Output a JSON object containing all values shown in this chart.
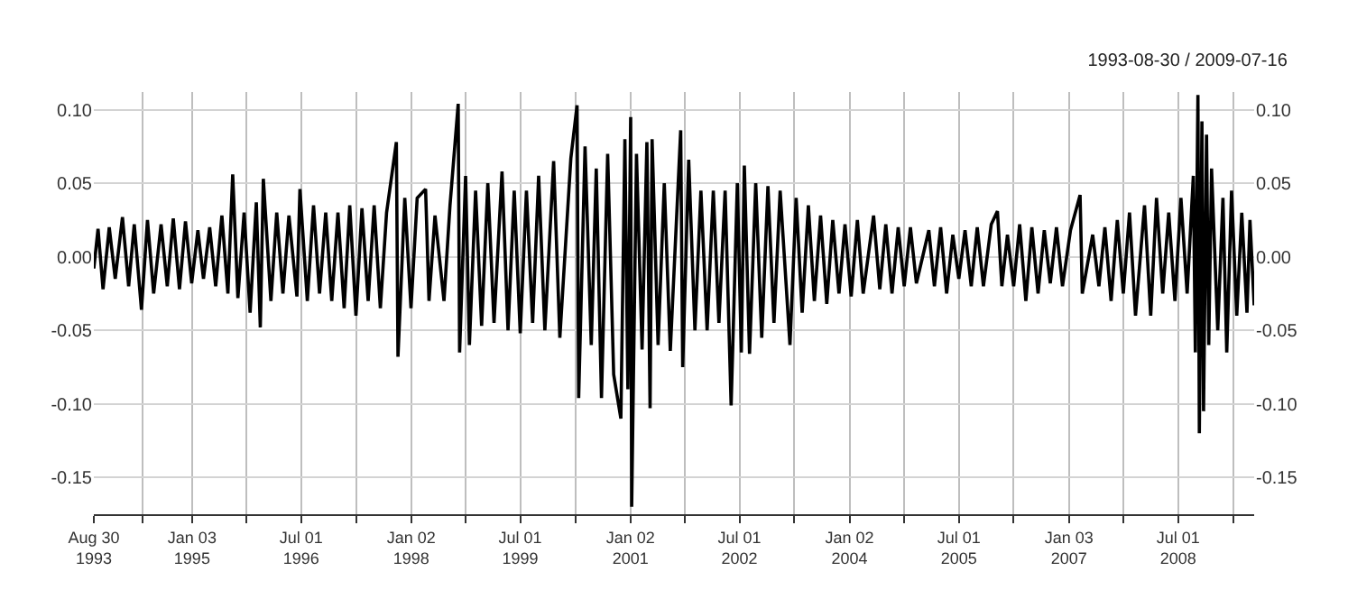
{
  "chart_data": {
    "type": "line",
    "title": "1993-08-30 / 2009-07-16",
    "x": [
      "1993-08-30",
      "1993-09-20",
      "1993-10-15",
      "1993-11-15",
      "1993-12-15",
      "1994-01-20",
      "1994-02-20",
      "1994-03-20",
      "1994-04-25",
      "1994-05-25",
      "1994-06-25",
      "1994-08-01",
      "1994-09-01",
      "1994-10-01",
      "1994-11-01",
      "1994-12-01",
      "1995-01-01",
      "1995-02-01",
      "1995-03-01",
      "1995-04-01",
      "1995-05-01",
      "1995-06-01",
      "1995-07-01",
      "1995-07-25",
      "1995-08-20",
      "1995-09-20",
      "1995-10-20",
      "1995-11-20",
      "1995-12-10",
      "1995-12-25",
      "1996-02-01",
      "1996-03-01",
      "1996-04-01",
      "1996-05-01",
      "1996-06-10",
      "1996-06-25",
      "1996-08-01",
      "1996-09-01",
      "1996-10-01",
      "1996-11-01",
      "1996-12-01",
      "1997-01-01",
      "1997-02-01",
      "1997-03-01",
      "1997-04-01",
      "1997-05-01",
      "1997-06-01",
      "1997-07-01",
      "1997-08-01",
      "1997-09-01",
      "1997-10-20",
      "1997-10-28",
      "1997-12-01",
      "1998-01-01",
      "1998-02-01",
      "1998-03-15",
      "1998-04-01",
      "1998-05-01",
      "1998-06-15",
      "1998-07-15",
      "1998-08-25",
      "1998-09-01",
      "1998-10-01",
      "1998-10-20",
      "1998-11-20",
      "1998-12-20",
      "1999-01-20",
      "1999-02-20",
      "1999-04-01",
      "1999-05-01",
      "1999-06-01",
      "1999-07-01",
      "1999-08-01",
      "1999-09-01",
      "1999-10-01",
      "1999-11-01",
      "1999-12-15",
      "2000-01-15",
      "2000-03-10",
      "2000-04-10",
      "2000-04-18",
      "2000-05-20",
      "2000-06-20",
      "2000-07-15",
      "2000-08-10",
      "2000-09-10",
      "2000-10-10",
      "2000-11-15",
      "2000-12-05",
      "2000-12-20",
      "2001-01-03",
      "2001-01-08",
      "2001-02-01",
      "2001-03-01",
      "2001-03-25",
      "2001-04-10",
      "2001-04-20",
      "2001-05-20",
      "2001-06-20",
      "2001-07-20",
      "2001-09-10",
      "2001-09-20",
      "2001-10-20",
      "2001-11-20",
      "2001-12-20",
      "2002-01-20",
      "2002-02-20",
      "2002-03-20",
      "2002-04-20",
      "2002-05-20",
      "2002-06-20",
      "2002-07-10",
      "2002-07-25",
      "2002-08-20",
      "2002-09-20",
      "2002-10-20",
      "2002-11-20",
      "2002-12-20",
      "2003-01-20",
      "2003-03-10",
      "2003-04-10",
      "2003-05-10",
      "2003-06-10",
      "2003-07-10",
      "2003-08-10",
      "2003-09-10",
      "2003-10-10",
      "2003-11-10",
      "2003-12-10",
      "2004-01-10",
      "2004-02-10",
      "2004-03-10",
      "2004-05-01",
      "2004-06-01",
      "2004-07-01",
      "2004-08-01",
      "2004-09-01",
      "2004-10-01",
      "2004-11-01",
      "2004-12-01",
      "2005-02-01",
      "2005-03-01",
      "2005-04-01",
      "2005-05-01",
      "2005-06-01",
      "2005-07-01",
      "2005-08-01",
      "2005-09-01",
      "2005-10-01",
      "2005-11-01",
      "2005-12-10",
      "2006-01-10",
      "2006-02-01",
      "2006-03-01",
      "2006-04-01",
      "2006-05-01",
      "2006-06-01",
      "2006-07-01",
      "2006-08-01",
      "2006-09-01",
      "2006-10-01",
      "2006-11-01",
      "2006-12-01",
      "2007-01-10",
      "2007-02-27",
      "2007-03-10",
      "2007-05-01",
      "2007-06-01",
      "2007-07-01",
      "2007-08-01",
      "2007-09-01",
      "2007-10-01",
      "2007-11-01",
      "2007-12-01",
      "2008-01-15",
      "2008-02-15",
      "2008-03-15",
      "2008-04-15",
      "2008-05-15",
      "2008-06-15",
      "2008-07-15",
      "2008-08-15",
      "2008-09-15",
      "2008-09-25",
      "2008-10-08",
      "2008-10-15",
      "2008-10-28",
      "2008-11-05",
      "2008-11-20",
      "2008-12-01",
      "2008-12-15",
      "2009-01-15",
      "2009-02-10",
      "2009-03-01",
      "2009-03-25",
      "2009-04-20",
      "2009-05-15",
      "2009-06-10",
      "2009-06-25",
      "2009-07-16"
    ],
    "series": [
      {
        "color": "#000000",
        "values": [
          -0.008,
          0.019,
          -0.022,
          0.02,
          -0.015,
          0.027,
          -0.02,
          0.022,
          -0.036,
          0.025,
          -0.025,
          0.022,
          -0.02,
          0.026,
          -0.022,
          0.024,
          -0.018,
          0.018,
          -0.015,
          0.02,
          -0.02,
          0.028,
          -0.025,
          0.056,
          -0.028,
          0.03,
          -0.038,
          0.037,
          -0.048,
          0.053,
          -0.03,
          0.03,
          -0.025,
          0.028,
          -0.027,
          0.046,
          -0.03,
          0.035,
          -0.025,
          0.03,
          -0.03,
          0.03,
          -0.035,
          0.035,
          -0.04,
          0.033,
          -0.03,
          0.035,
          -0.035,
          0.03,
          0.078,
          -0.068,
          0.04,
          -0.035,
          0.04,
          0.046,
          -0.03,
          0.028,
          -0.03,
          0.035,
          0.104,
          -0.065,
          0.055,
          -0.06,
          0.045,
          -0.047,
          0.05,
          -0.045,
          0.058,
          -0.05,
          0.045,
          -0.052,
          0.045,
          -0.045,
          0.055,
          -0.05,
          0.065,
          -0.055,
          0.067,
          0.103,
          -0.096,
          0.075,
          -0.06,
          0.06,
          -0.096,
          0.07,
          -0.08,
          -0.11,
          0.08,
          -0.09,
          0.095,
          -0.17,
          0.07,
          -0.063,
          0.078,
          -0.103,
          0.08,
          -0.06,
          0.05,
          -0.064,
          0.086,
          -0.075,
          0.066,
          -0.05,
          0.045,
          -0.05,
          0.045,
          -0.045,
          0.045,
          -0.101,
          0.05,
          -0.065,
          0.062,
          -0.066,
          0.05,
          -0.055,
          0.048,
          -0.045,
          0.045,
          -0.06,
          0.04,
          -0.038,
          0.035,
          -0.03,
          0.028,
          -0.032,
          0.025,
          -0.025,
          0.022,
          -0.027,
          0.025,
          -0.025,
          0.028,
          -0.022,
          0.022,
          -0.025,
          0.02,
          -0.02,
          0.02,
          -0.018,
          0.018,
          -0.02,
          0.02,
          -0.025,
          0.015,
          -0.015,
          0.018,
          -0.02,
          0.02,
          -0.02,
          0.022,
          0.031,
          -0.02,
          0.015,
          -0.02,
          0.022,
          -0.03,
          0.02,
          -0.025,
          0.018,
          -0.018,
          0.02,
          -0.02,
          0.018,
          0.042,
          -0.025,
          0.015,
          -0.02,
          0.02,
          -0.03,
          0.025,
          -0.025,
          0.03,
          -0.04,
          0.035,
          -0.04,
          0.04,
          -0.025,
          0.03,
          -0.03,
          0.04,
          -0.025,
          0.055,
          -0.065,
          0.11,
          -0.12,
          0.092,
          -0.105,
          0.083,
          -0.06,
          0.06,
          -0.05,
          0.04,
          -0.065,
          0.045,
          -0.04,
          0.03,
          -0.038,
          0.025,
          -0.033
        ]
      }
    ],
    "xlim": [
      "1993-08-30",
      "2009-07-16"
    ],
    "xticks": [
      {
        "value": "1993-08-30",
        "label": "Aug 30\n1993"
      },
      {
        "value": "1994-05-01",
        "label": null
      },
      {
        "value": "1995-01-03",
        "label": "Jan 03\n1995"
      },
      {
        "value": "1995-10-01",
        "label": null
      },
      {
        "value": "1996-07-01",
        "label": "Jul 01\n1996"
      },
      {
        "value": "1997-04-01",
        "label": null
      },
      {
        "value": "1998-01-02",
        "label": "Jan 02\n1998"
      },
      {
        "value": "1998-10-01",
        "label": null
      },
      {
        "value": "1999-07-01",
        "label": "Jul 01\n1999"
      },
      {
        "value": "2000-04-01",
        "label": null
      },
      {
        "value": "2001-01-02",
        "label": "Jan 02\n2001"
      },
      {
        "value": "2001-10-01",
        "label": null
      },
      {
        "value": "2002-07-01",
        "label": "Jul 01\n2002"
      },
      {
        "value": "2003-04-01",
        "label": null
      },
      {
        "value": "2004-01-02",
        "label": "Jan 02\n2004"
      },
      {
        "value": "2004-10-01",
        "label": null
      },
      {
        "value": "2005-07-01",
        "label": "Jul 01\n2005"
      },
      {
        "value": "2006-04-01",
        "label": null
      },
      {
        "value": "2007-01-03",
        "label": "Jan 03\n2007"
      },
      {
        "value": "2007-10-01",
        "label": null
      },
      {
        "value": "2008-07-01",
        "label": "Jul 01\n2008"
      },
      {
        "value": "2009-04-01",
        "label": null
      }
    ],
    "ylim": [
      -0.175,
      0.112
    ],
    "yticks": [
      {
        "value": -0.15,
        "label": "-0.15"
      },
      {
        "value": -0.1,
        "label": "-0.10"
      },
      {
        "value": -0.05,
        "label": "-0.05"
      },
      {
        "value": 0,
        "label": "0.00"
      },
      {
        "value": 0.05,
        "label": "0.05"
      },
      {
        "value": 0.1,
        "label": "0.10"
      }
    ],
    "y2lim": [
      -0.175,
      0.112
    ],
    "y2ticks": [
      {
        "value": -0.15,
        "label": "-0.15"
      },
      {
        "value": -0.1,
        "label": "-0.10"
      },
      {
        "value": -0.05,
        "label": "-0.05"
      },
      {
        "value": 0,
        "label": "0.00"
      },
      {
        "value": 0.05,
        "label": "0.05"
      },
      {
        "value": 0.1,
        "label": "0.10"
      }
    ],
    "grid": true,
    "marker": "none",
    "line_style": "solid"
  }
}
